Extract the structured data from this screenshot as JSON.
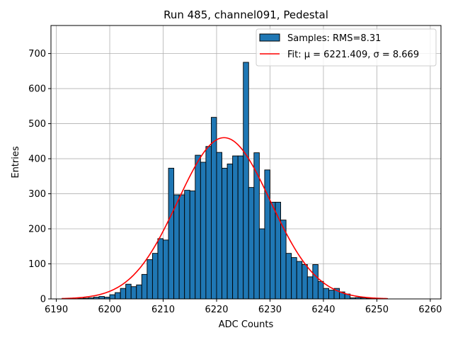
{
  "chart_data": {
    "type": "bar",
    "title": "Run 485, channel091, Pedestal",
    "xlabel": "ADC Counts",
    "ylabel": "Entries",
    "xlim": [
      6189,
      6262
    ],
    "ylim": [
      0,
      780
    ],
    "xticks": [
      6190,
      6200,
      6210,
      6220,
      6230,
      6240,
      6250,
      6260
    ],
    "yticks": [
      0,
      100,
      200,
      300,
      400,
      500,
      600,
      700
    ],
    "grid": true,
    "legend_position": "top-right",
    "bin_width": 1,
    "histogram": {
      "name": "Samples: RMS=8.31",
      "color": "#1f77b4",
      "bins": [
        [
          6194,
          1
        ],
        [
          6195,
          2
        ],
        [
          6196,
          3
        ],
        [
          6197,
          5
        ],
        [
          6198,
          7
        ],
        [
          6199,
          5
        ],
        [
          6200,
          12
        ],
        [
          6201,
          18
        ],
        [
          6202,
          30
        ],
        [
          6203,
          42
        ],
        [
          6204,
          35
        ],
        [
          6205,
          40
        ],
        [
          6206,
          70
        ],
        [
          6207,
          112
        ],
        [
          6208,
          130
        ],
        [
          6209,
          172
        ],
        [
          6210,
          168
        ],
        [
          6211,
          373
        ],
        [
          6212,
          297
        ],
        [
          6213,
          297
        ],
        [
          6214,
          310
        ],
        [
          6215,
          308
        ],
        [
          6216,
          410
        ],
        [
          6217,
          390
        ],
        [
          6218,
          435
        ],
        [
          6219,
          518
        ],
        [
          6220,
          418
        ],
        [
          6221,
          373
        ],
        [
          6222,
          385
        ],
        [
          6223,
          408
        ],
        [
          6224,
          408
        ],
        [
          6225,
          675
        ],
        [
          6226,
          318
        ],
        [
          6227,
          417
        ],
        [
          6228,
          200
        ],
        [
          6229,
          368
        ],
        [
          6230,
          276
        ],
        [
          6231,
          276
        ],
        [
          6232,
          225
        ],
        [
          6233,
          130
        ],
        [
          6234,
          118
        ],
        [
          6235,
          107
        ],
        [
          6236,
          98
        ],
        [
          6237,
          63
        ],
        [
          6238,
          98
        ],
        [
          6239,
          50
        ],
        [
          6240,
          30
        ],
        [
          6241,
          25
        ],
        [
          6242,
          30
        ],
        [
          6243,
          20
        ],
        [
          6244,
          14
        ],
        [
          6245,
          3
        ],
        [
          6246,
          4
        ],
        [
          6247,
          3
        ],
        [
          6248,
          2
        ],
        [
          6249,
          1
        ],
        [
          6250,
          2
        ],
        [
          6251,
          1
        ]
      ]
    },
    "fit": {
      "name": "Fit: μ = 6221.409, σ = 8.669",
      "color": "#ff0000",
      "mu": 6221.409,
      "sigma": 8.669,
      "amplitude": 460,
      "x_range": [
        6191,
        6252
      ]
    }
  }
}
